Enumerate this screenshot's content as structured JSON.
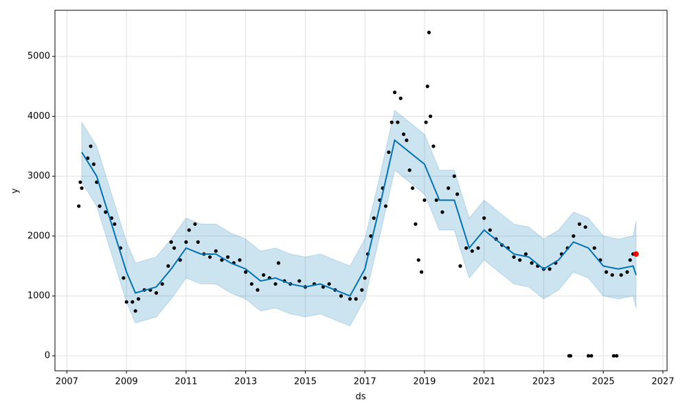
{
  "chart_data": {
    "type": "forecast",
    "x_label": "ds",
    "y_label": "y",
    "xlim": [
      2006.6,
      2027.14
    ],
    "ylim": [
      -250,
      5770
    ],
    "xticks": [
      2007,
      2009,
      2011,
      2013,
      2015,
      2017,
      2019,
      2021,
      2023,
      2025,
      2027
    ],
    "yticks": [
      0,
      1000,
      2000,
      3000,
      4000,
      5000
    ],
    "grid": true,
    "color": "#000000",
    "forecast_color": "#0072B2",
    "band_color": "#0072B2",
    "last_point_color": "#ff0000",
    "x": [
      2007.4,
      2007.45,
      2007.5,
      2007.7,
      2007.8,
      2007.9,
      2008.0,
      2008.1,
      2008.3,
      2008.5,
      2008.6,
      2008.8,
      2008.9,
      2009.0,
      2009.2,
      2009.3,
      2009.4,
      2009.6,
      2009.8,
      2010.0,
      2010.2,
      2010.4,
      2010.5,
      2010.6,
      2010.8,
      2011.0,
      2011.1,
      2011.3,
      2011.4,
      2011.6,
      2011.8,
      2012.0,
      2012.2,
      2012.4,
      2012.6,
      2012.8,
      2013.0,
      2013.2,
      2013.4,
      2013.6,
      2013.8,
      2014.0,
      2014.1,
      2014.3,
      2014.5,
      2014.8,
      2015.0,
      2015.3,
      2015.6,
      2015.8,
      2016.0,
      2016.2,
      2016.5,
      2016.7,
      2016.9,
      2017.0,
      2017.1,
      2017.2,
      2017.3,
      2017.5,
      2017.6,
      2017.7,
      2017.8,
      2017.9,
      2018.0,
      2018.1,
      2018.2,
      2018.3,
      2018.4,
      2018.5,
      2018.6,
      2018.7,
      2018.8,
      2018.9,
      2019.0,
      2019.05,
      2019.1,
      2019.15,
      2019.2,
      2019.3,
      2019.4,
      2019.6,
      2019.8,
      2020.0,
      2020.1,
      2020.2,
      2020.4,
      2020.6,
      2020.8,
      2021.0,
      2021.2,
      2021.4,
      2021.6,
      2021.8,
      2022.0,
      2022.2,
      2022.4,
      2022.6,
      2022.8,
      2023.0,
      2023.2,
      2023.4,
      2023.6,
      2023.8,
      2023.85,
      2023.9,
      2024.0,
      2024.2,
      2024.4,
      2024.5,
      2024.6,
      2024.7,
      2024.9,
      2025.1,
      2025.3,
      2025.35,
      2025.45,
      2025.6,
      2025.8,
      2025.9,
      2026.0
    ],
    "values": [
      2500,
      2900,
      2800,
      3300,
      3500,
      3200,
      2900,
      2500,
      2400,
      2300,
      2200,
      1800,
      1300,
      900,
      900,
      750,
      950,
      1100,
      1100,
      1050,
      1200,
      1500,
      1900,
      1800,
      1600,
      1900,
      2100,
      2200,
      1900,
      1700,
      1650,
      1750,
      1600,
      1650,
      1550,
      1600,
      1400,
      1200,
      1100,
      1350,
      1300,
      1200,
      1550,
      1250,
      1200,
      1250,
      1150,
      1200,
      1150,
      1200,
      1100,
      1000,
      950,
      950,
      1100,
      1300,
      1700,
      2000,
      2300,
      2600,
      2800,
      2500,
      3400,
      3900,
      4400,
      3900,
      4300,
      3700,
      3600,
      3100,
      2800,
      2200,
      1600,
      1400,
      2600,
      3900,
      4500,
      5400,
      4000,
      3500,
      2600,
      2400,
      2800,
      3000,
      2700,
      1500,
      1800,
      1750,
      1800,
      2300,
      2100,
      1950,
      1850,
      1800,
      1650,
      1600,
      1700,
      1550,
      1500,
      1450,
      1450,
      1550,
      1700,
      1800,
      0,
      0,
      2000,
      2200,
      2150,
      0,
      0,
      1800,
      1600,
      1400,
      1350,
      0,
      0,
      1350,
      1400,
      1600,
      1700
    ],
    "forecast": {
      "x": [
        2007.5,
        2008,
        2008.5,
        2009,
        2009.3,
        2010,
        2010.5,
        2011,
        2011.5,
        2012,
        2012.5,
        2013,
        2013.5,
        2014,
        2014.5,
        2015,
        2015.5,
        2016,
        2016.5,
        2017,
        2017.5,
        2018,
        2018.5,
        2019,
        2019.5,
        2020,
        2020.5,
        2021,
        2021.5,
        2022,
        2022.5,
        2023,
        2023.5,
        2024,
        2024.5,
        2025,
        2025.5,
        2026,
        2026.1
      ],
      "values": [
        3400,
        3000,
        2200,
        1400,
        1050,
        1150,
        1450,
        1800,
        1700,
        1700,
        1550,
        1450,
        1250,
        1300,
        1200,
        1150,
        1200,
        1100,
        1000,
        1450,
        2500,
        3600,
        3400,
        3200,
        2600,
        2600,
        1800,
        2100,
        1900,
        1700,
        1650,
        1450,
        1600,
        1900,
        1800,
        1500,
        1450,
        1500,
        1350
      ],
      "upper": [
        3900,
        3500,
        2700,
        1900,
        1550,
        1650,
        1950,
        2300,
        2200,
        2200,
        2050,
        1950,
        1750,
        1800,
        1700,
        1650,
        1700,
        1600,
        1500,
        1950,
        3000,
        4100,
        3900,
        3700,
        3100,
        3100,
        2300,
        2600,
        2400,
        2200,
        2150,
        1950,
        2100,
        2400,
        2300,
        2000,
        1950,
        2000,
        2250
      ],
      "lower": [
        2900,
        2500,
        1700,
        900,
        550,
        650,
        950,
        1300,
        1200,
        1200,
        1050,
        950,
        750,
        800,
        700,
        650,
        700,
        600,
        500,
        950,
        2000,
        3100,
        2900,
        2700,
        2100,
        2100,
        1300,
        1600,
        1400,
        1200,
        1150,
        950,
        1100,
        1400,
        1300,
        1000,
        950,
        1000,
        800
      ]
    },
    "last_point": {
      "x": 2026.1,
      "value": 1700
    }
  }
}
